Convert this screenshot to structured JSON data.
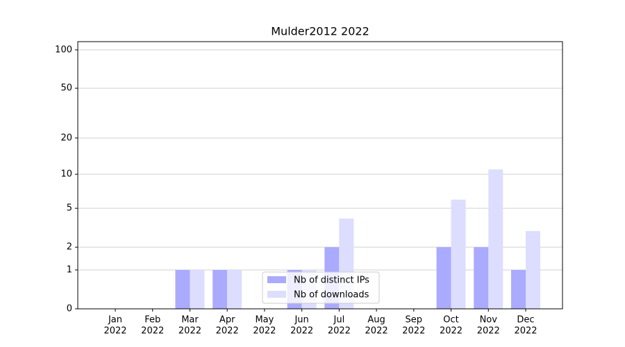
{
  "chart_data": {
    "type": "bar",
    "title": "Mulder2012 2022",
    "categories": [
      [
        "Jan",
        "2022"
      ],
      [
        "Feb",
        "2022"
      ],
      [
        "Mar",
        "2022"
      ],
      [
        "Apr",
        "2022"
      ],
      [
        "May",
        "2022"
      ],
      [
        "Jun",
        "2022"
      ],
      [
        "Jul",
        "2022"
      ],
      [
        "Aug",
        "2022"
      ],
      [
        "Sep",
        "2022"
      ],
      [
        "Oct",
        "2022"
      ],
      [
        "Nov",
        "2022"
      ],
      [
        "Dec",
        "2022"
      ]
    ],
    "series": [
      {
        "name": "Nb of distinct IPs",
        "color": "#aaaaff",
        "values": [
          0,
          0,
          1,
          1,
          0,
          1,
          2,
          0,
          0,
          2,
          2,
          1
        ]
      },
      {
        "name": "Nb of downloads",
        "color": "#ddddff",
        "values": [
          0,
          0,
          1,
          1,
          0,
          1,
          4,
          0,
          0,
          6,
          11,
          3
        ]
      }
    ],
    "yscale": "symlog",
    "ylim": [
      0,
      116
    ],
    "yticks": [
      0,
      1,
      2,
      5,
      10,
      20,
      50,
      100
    ],
    "grid": true,
    "legend": "lower center"
  }
}
